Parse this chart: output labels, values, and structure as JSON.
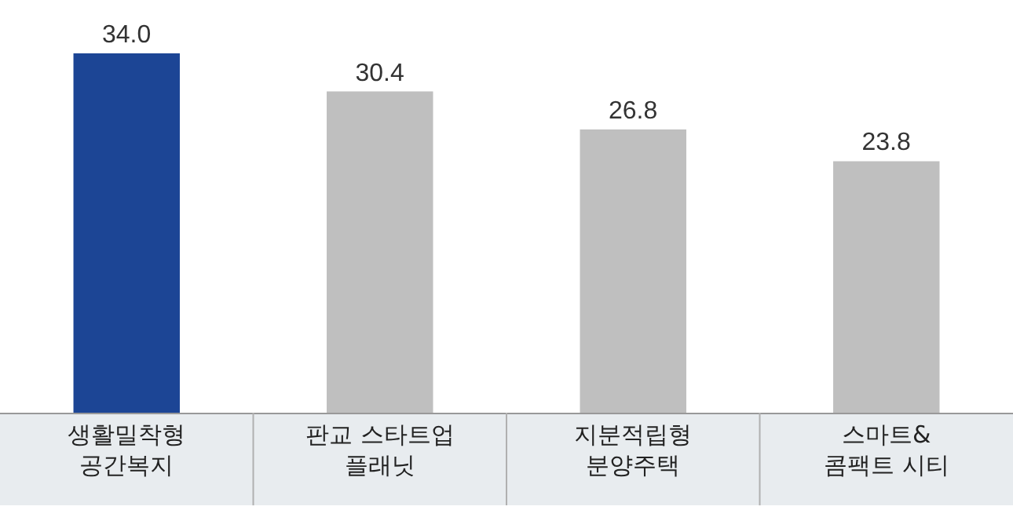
{
  "chart_data": {
    "type": "bar",
    "categories": [
      "생활밀착형\n공간복지",
      "판교 스타트업\n플래닛",
      "지분적립형\n분양주택",
      "스마트&\n콤팩트 시티"
    ],
    "values": [
      34.0,
      30.4,
      26.8,
      23.8
    ],
    "colors": [
      "#1c4595",
      "#bfbfbf",
      "#bfbfbf",
      "#bfbfbf"
    ],
    "value_labels": [
      "34.0",
      "30.4",
      "26.8",
      "23.8"
    ],
    "tick_labels": "x",
    "grid": false,
    "legend": false
  }
}
